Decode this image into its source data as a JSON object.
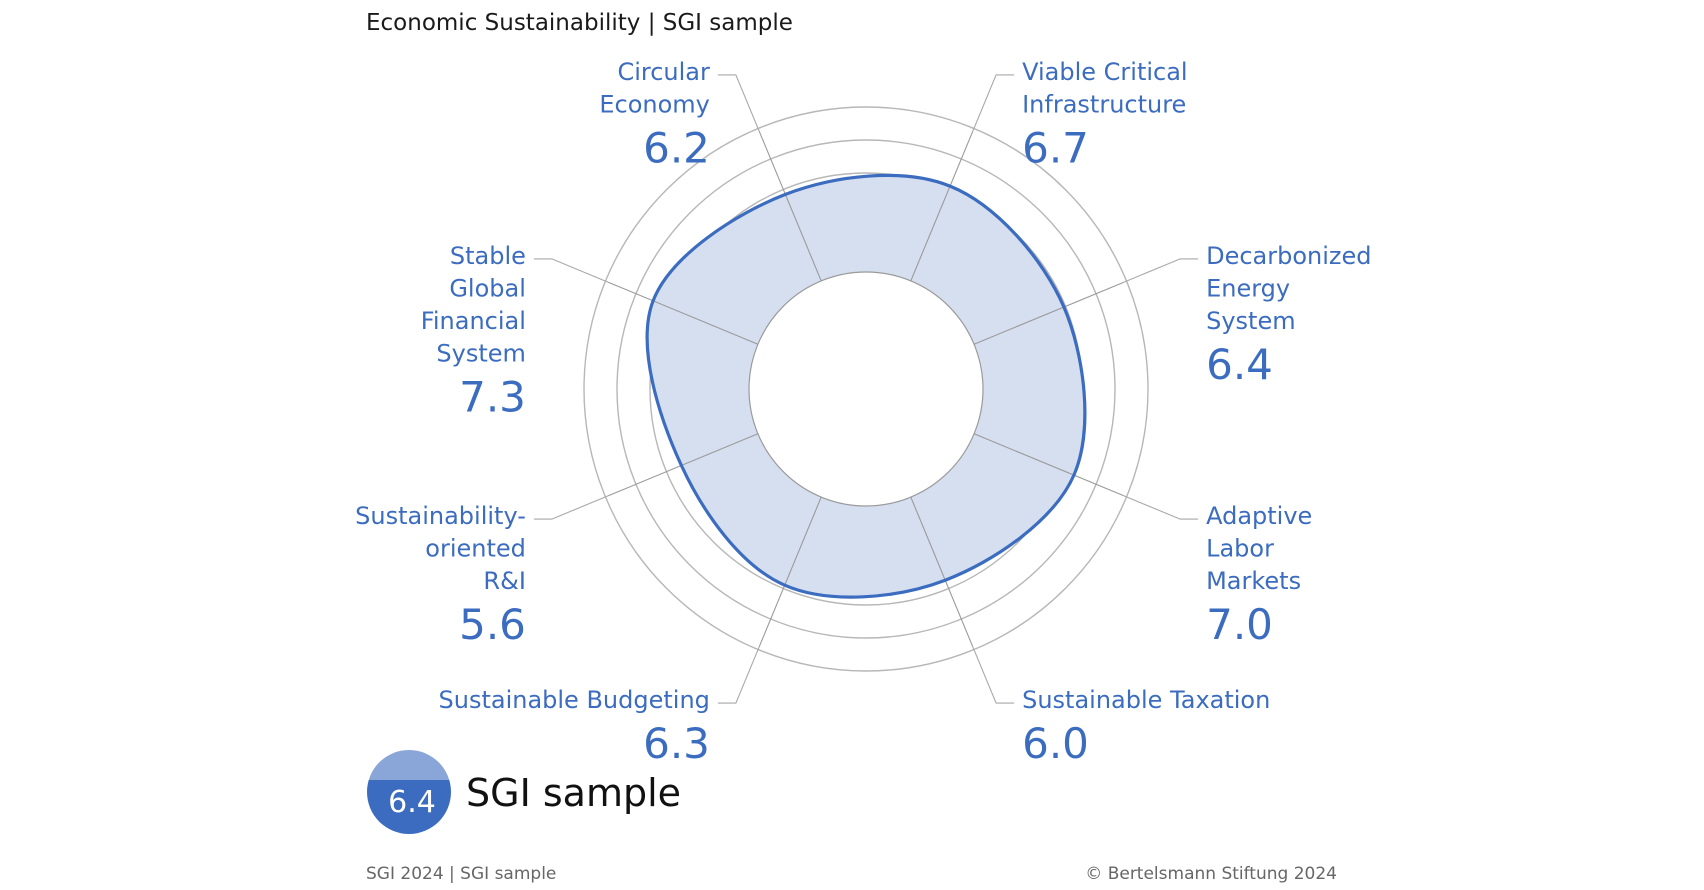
{
  "chart_data": {
    "type": "radar",
    "title": "Economic Sustainability | SGI sample",
    "scale": [
      1,
      10
    ],
    "categories": [
      {
        "name": "Circular Economy",
        "lines": [
          "Circular",
          "Economy"
        ],
        "value": 6.2
      },
      {
        "name": "Viable Critical Infrastructure",
        "lines": [
          "Viable Critical",
          "Infrastructure"
        ],
        "value": 6.7
      },
      {
        "name": "Decarbonized Energy System",
        "lines": [
          "Decarbonized",
          "Energy",
          "System"
        ],
        "value": 6.4
      },
      {
        "name": "Adaptive Labor Markets",
        "lines": [
          "Adaptive",
          "Labor",
          "Markets"
        ],
        "value": 7.0
      },
      {
        "name": "Sustainable Taxation",
        "lines": [
          "Sustainable Taxation"
        ],
        "value": 6.0
      },
      {
        "name": "Sustainable Budgeting",
        "lines": [
          "Sustainable Budgeting"
        ],
        "value": 6.3
      },
      {
        "name": "Sustainability-oriented R&I",
        "lines": [
          "Sustainability-",
          "oriented",
          "R&I"
        ],
        "value": 5.6
      },
      {
        "name": "Stable Global Financial System",
        "lines": [
          "Stable",
          "Global",
          "Financial",
          "System"
        ],
        "value": 7.3
      }
    ],
    "overall": {
      "value": "6.4",
      "label": "SGI sample"
    }
  },
  "colors": {
    "accent": "#3b6cbf",
    "fill": "#d6dff0",
    "badge_top": "#8aa6d9",
    "badge_bottom": "#3b6cbf"
  },
  "footer": {
    "left": "SGI 2024 | SGI sample",
    "right": "© Bertelsmann Stiftung 2024"
  }
}
